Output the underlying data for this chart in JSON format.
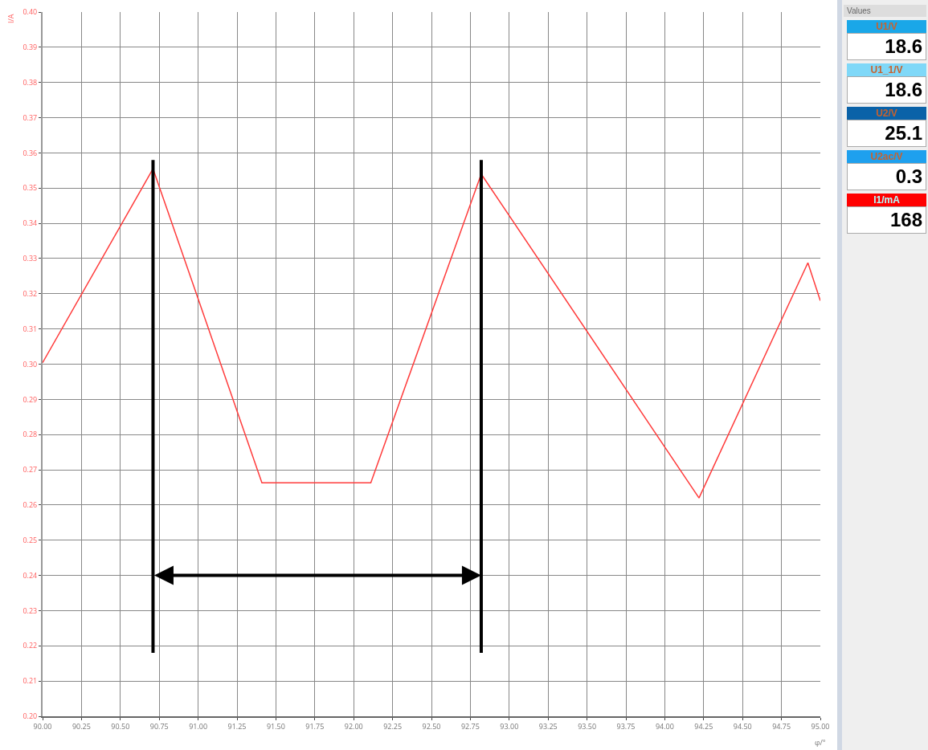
{
  "chart_data": [
    {
      "type": "line",
      "xlabel": "φ/°",
      "ylabel": "I/A",
      "series": [
        {
          "color": "#ff3b3b",
          "x": [
            90.0,
            90.71,
            91.41,
            92.11,
            92.82,
            94.22,
            94.92,
            95.0
          ],
          "values": [
            0.3004,
            0.3555,
            0.2663,
            0.2663,
            0.354,
            0.262,
            0.3288,
            0.318
          ]
        }
      ],
      "xlim": [
        90,
        95
      ],
      "ylim": [
        0.2,
        0.4
      ],
      "xticks": [
        {
          "value": 90,
          "label": "90.00"
        },
        {
          "value": 90.25,
          "label": "90.25"
        },
        {
          "value": 90.5,
          "label": "90.50"
        },
        {
          "value": 90.75,
          "label": "90.75"
        },
        {
          "value": 91,
          "label": "91.00"
        },
        {
          "value": 91.25,
          "label": "91.25"
        },
        {
          "value": 91.5,
          "label": "91.50"
        },
        {
          "value": 91.75,
          "label": "91.75"
        },
        {
          "value": 92,
          "label": "92.00"
        },
        {
          "value": 92.25,
          "label": "92.25"
        },
        {
          "value": 92.5,
          "label": "92.50"
        },
        {
          "value": 92.75,
          "label": "92.75"
        },
        {
          "value": 93,
          "label": "93.00"
        },
        {
          "value": 93.25,
          "label": "93.25"
        },
        {
          "value": 93.5,
          "label": "93.50"
        },
        {
          "value": 93.75,
          "label": "93.75"
        },
        {
          "value": 94,
          "label": "94.00"
        },
        {
          "value": 94.25,
          "label": "94.25"
        },
        {
          "value": 94.5,
          "label": "94.50"
        },
        {
          "value": 94.75,
          "label": "94.75"
        },
        {
          "value": 95,
          "label": "95.00"
        }
      ],
      "yticks": [
        {
          "value": 0.2,
          "label": "0.20"
        },
        0.21,
        0.22,
        0.23,
        0.24,
        0.25,
        0.26,
        0.27,
        0.28,
        0.29,
        {
          "value": 0.3,
          "label": "0.30"
        },
        0.31,
        0.32,
        0.33,
        0.34,
        0.35,
        0.36,
        0.37,
        0.38,
        0.39,
        {
          "value": 0.4,
          "label": "0.40"
        }
      ],
      "grid": true,
      "marker": "none",
      "line_style": "solid",
      "ref_lines": [
        {
          "axis": "x",
          "value": 90.71,
          "color": "#000000"
        },
        {
          "axis": "x",
          "value": 92.82,
          "color": "#000000"
        }
      ]
    },
    {
      "type": "other",
      "title": "Values",
      "annotations": [
        "U1/V",
        "18.6",
        "U1_1/V",
        "18.6",
        "U2/V",
        "25.1",
        "U2ac/V",
        "0.3",
        "I1/mA",
        "168"
      ]
    }
  ]
}
